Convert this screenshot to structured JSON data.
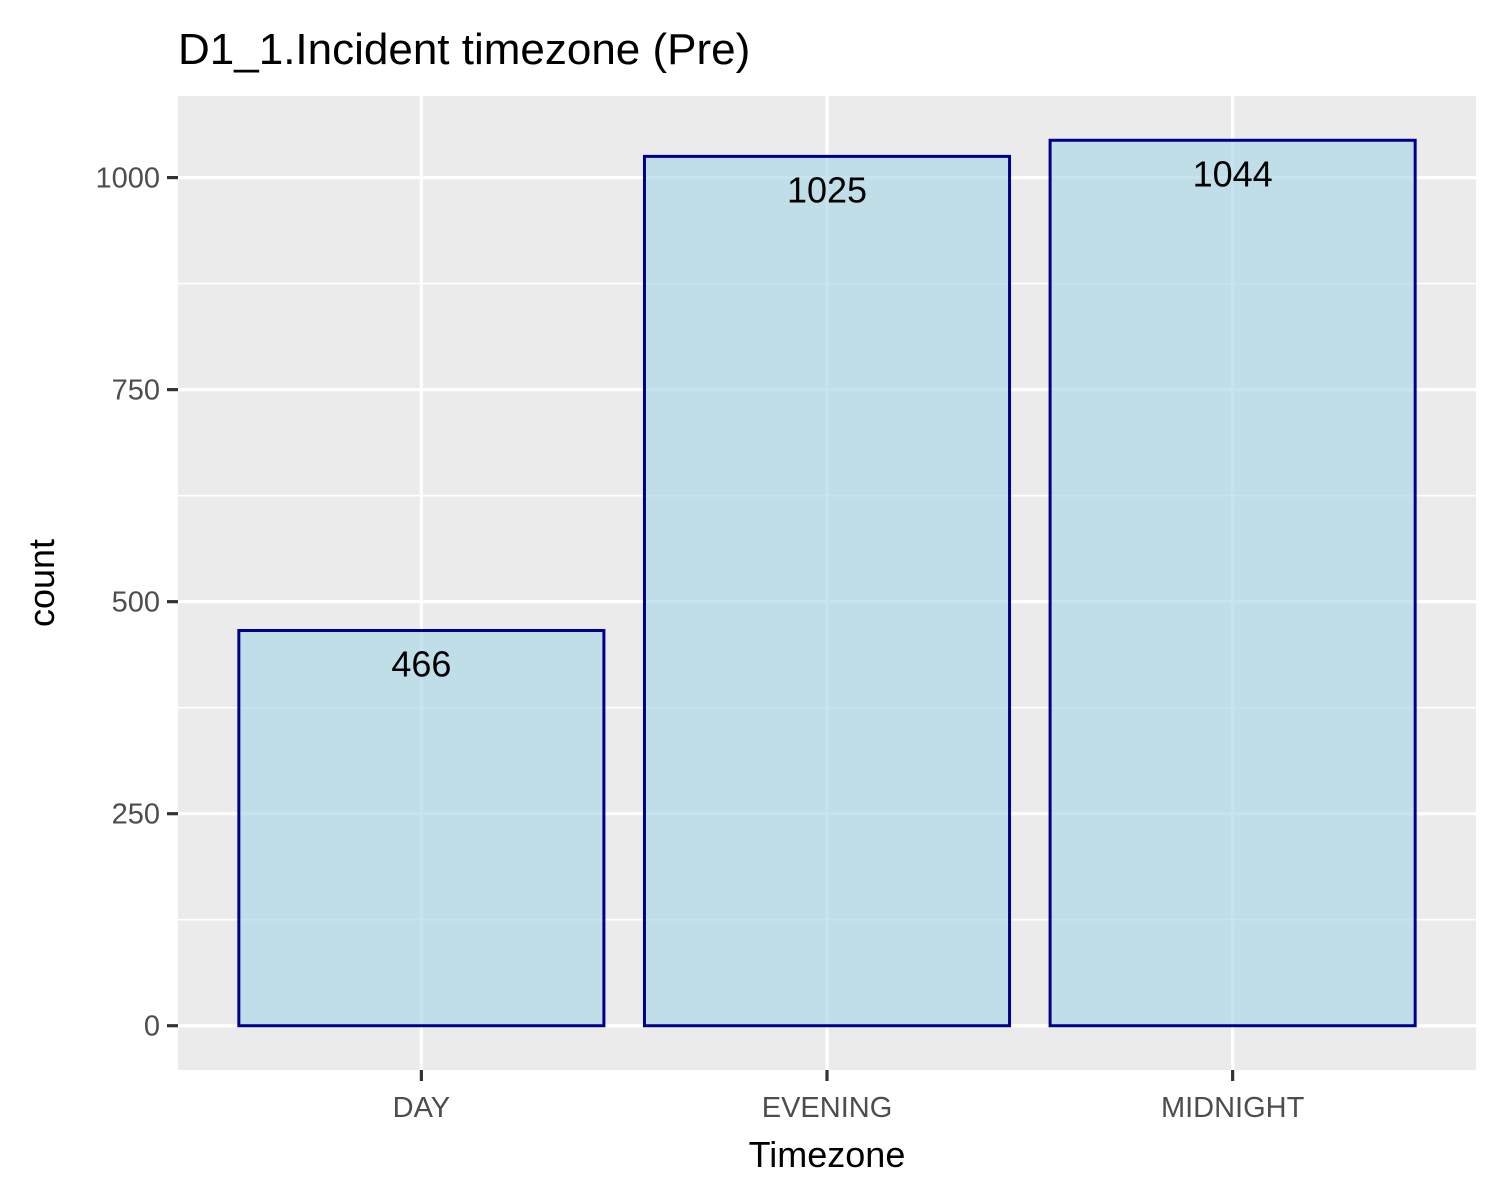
{
  "chart_data": {
    "type": "bar",
    "title": "D1_1.Incident timezone (Pre)",
    "xlabel": "Timezone",
    "ylabel": "count",
    "categories": [
      "DAY",
      "EVENING",
      "MIDNIGHT"
    ],
    "values": [
      466,
      1025,
      1044
    ],
    "data_labels": [
      "466",
      "1025",
      "1044"
    ],
    "ylim": [
      -52.2,
      1096.2
    ],
    "yticks": [
      0,
      250,
      500,
      750,
      1000
    ],
    "ytick_labels": [
      "0",
      "250",
      "500",
      "750",
      "1000"
    ],
    "grid": true,
    "legend": "none",
    "colors": {
      "bar_fill": "#ADD8E6",
      "bar_outline": "#00008B",
      "panel_background": "#EBEBEB",
      "gridline": "#FFFFFF",
      "tick_text": "#4D4D4D",
      "tick_mark": "#333333"
    }
  }
}
